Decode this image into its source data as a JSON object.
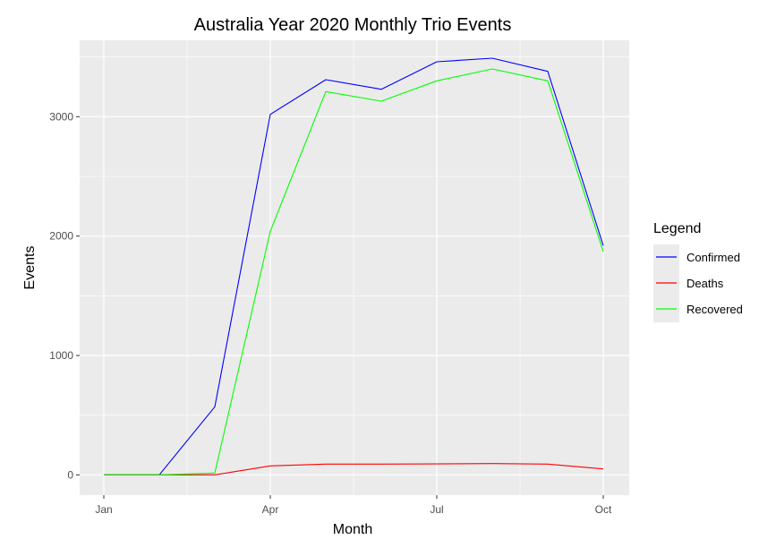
{
  "chart_data": {
    "type": "line",
    "title": "Australia  Year 2020 Monthly Trio Events",
    "xlabel": "Month",
    "ylabel": "Events",
    "x_ticks": [
      "Jan",
      "Apr",
      "Jul",
      "Oct"
    ],
    "y_ticks": [
      "0",
      "1000",
      "2000",
      "3000"
    ],
    "ylim": [
      -170,
      3640
    ],
    "x_months": [
      "Jan",
      "Feb",
      "Mar",
      "Apr",
      "May",
      "Jun",
      "Jul",
      "Aug",
      "Sep",
      "Oct"
    ],
    "grid": true,
    "legend": {
      "title": "Legend",
      "position": "right"
    },
    "series": [
      {
        "name": "Confirmed",
        "color": "#0000ff",
        "values": [
          0,
          0,
          570,
          3020,
          3310,
          3230,
          3460,
          3490,
          3380,
          1920
        ]
      },
      {
        "name": "Deaths",
        "color": "#ff0000",
        "values": [
          0,
          0,
          0,
          75,
          90,
          90,
          92,
          95,
          90,
          50
        ]
      },
      {
        "name": "Recovered",
        "color": "#00ff00",
        "values": [
          0,
          0,
          15,
          2040,
          3210,
          3130,
          3300,
          3400,
          3300,
          1870
        ]
      }
    ]
  }
}
